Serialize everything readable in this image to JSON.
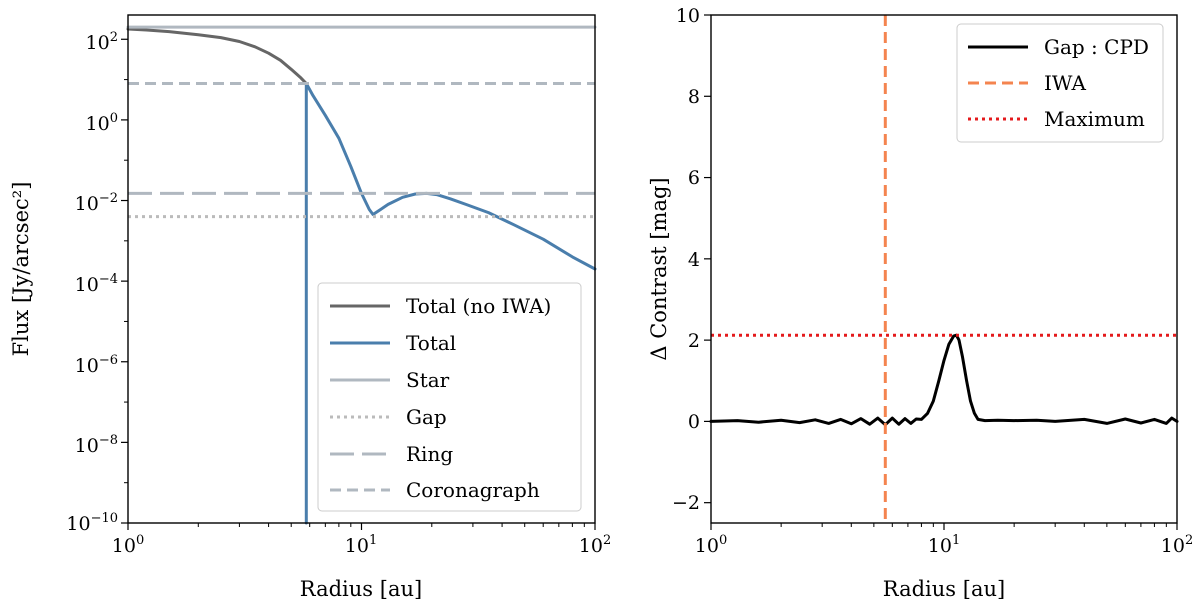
{
  "chart_data": [
    {
      "type": "line",
      "title": "",
      "xlabel": "Radius [au]",
      "ylabel": "Flux [Jy/arcsec²]",
      "xscale": "log",
      "yscale": "log",
      "xlim": [
        1,
        100
      ],
      "ylim": [
        1e-10,
        400
      ],
      "x_ticks": [
        {
          "value": 1,
          "base": "10",
          "exp": "0"
        },
        {
          "value": 10,
          "base": "10",
          "exp": "1"
        },
        {
          "value": 100,
          "base": "10",
          "exp": "2"
        }
      ],
      "y_ticks": [
        {
          "value": 100,
          "base": "10",
          "exp": "2"
        },
        {
          "value": 1,
          "base": "10",
          "exp": "0"
        },
        {
          "value": 0.01,
          "base": "10",
          "exp": "−2"
        },
        {
          "value": 0.0001,
          "base": "10",
          "exp": "−4"
        },
        {
          "value": 1e-06,
          "base": "10",
          "exp": "−6"
        },
        {
          "value": 1e-08,
          "base": "10",
          "exp": "−8"
        },
        {
          "value": 1e-10,
          "base": "10",
          "exp": "−10"
        }
      ],
      "legend_position": "lower-right",
      "series": [
        {
          "name": "Total (no IWA)",
          "color": "#666666",
          "style": "solid",
          "x": [
            1,
            1.2,
            1.5,
            2,
            2.5,
            3,
            3.5,
            4,
            4.5,
            5,
            5.5,
            5.8
          ],
          "y": [
            180,
            170,
            155,
            130,
            110,
            88,
            65,
            45,
            30,
            18,
            11,
            8
          ]
        },
        {
          "name": "Total",
          "color": "#4a7eac",
          "style": "solid",
          "x": [
            5.8,
            5.8,
            6.2,
            7,
            8,
            9,
            10,
            10.8,
            11.2,
            11.8,
            13,
            15,
            17,
            19,
            21,
            24,
            28,
            35,
            45,
            60,
            80,
            100
          ],
          "y": [
            1e-10,
            8,
            4,
            1.3,
            0.35,
            0.07,
            0.015,
            0.006,
            0.0045,
            0.0055,
            0.008,
            0.012,
            0.0145,
            0.015,
            0.014,
            0.011,
            0.008,
            0.005,
            0.0025,
            0.0011,
            0.0004,
            0.0002
          ]
        },
        {
          "name": "Star",
          "color": "#b0b8c0",
          "style": "solid",
          "x": [
            1,
            100
          ],
          "y": [
            200,
            200
          ]
        },
        {
          "name": "Gap",
          "color": "#bbbbbb",
          "style": "dotted",
          "x": [
            1,
            100
          ],
          "y": [
            0.004,
            0.004
          ]
        },
        {
          "name": "Ring",
          "color": "#b0b8c0",
          "style": "longdash",
          "x": [
            1,
            100
          ],
          "y": [
            0.015,
            0.015
          ]
        },
        {
          "name": "Coronagraph",
          "color": "#b0b8c0",
          "style": "dashed",
          "x": [
            1,
            100
          ],
          "y": [
            8,
            8
          ]
        }
      ]
    },
    {
      "type": "line",
      "title": "",
      "xlabel": "Radius [au]",
      "ylabel": "Δ Contrast [mag]",
      "xscale": "log",
      "yscale": "linear",
      "xlim": [
        1,
        100
      ],
      "ylim": [
        -2.5,
        10
      ],
      "x_ticks": [
        {
          "value": 1,
          "base": "10",
          "exp": "0"
        },
        {
          "value": 10,
          "base": "10",
          "exp": "1"
        },
        {
          "value": 100,
          "base": "10",
          "exp": "2"
        }
      ],
      "y_ticks": [
        {
          "value": 10,
          "label": "10"
        },
        {
          "value": 8,
          "label": "8"
        },
        {
          "value": 6,
          "label": "6"
        },
        {
          "value": 4,
          "label": "4"
        },
        {
          "value": 2,
          "label": "2"
        },
        {
          "value": 0,
          "label": "0"
        },
        {
          "value": -2,
          "label": "−2"
        }
      ],
      "legend_position": "top-right",
      "series": [
        {
          "name": "Gap : CPD",
          "color": "#000000",
          "style": "solid",
          "x": [
            1,
            1.3,
            1.6,
            2,
            2.4,
            2.8,
            3.2,
            3.6,
            4,
            4.4,
            4.8,
            5.2,
            5.6,
            6,
            6.4,
            6.8,
            7.2,
            7.6,
            8,
            8.5,
            9,
            9.5,
            10,
            10.5,
            11,
            11.3,
            11.6,
            12,
            12.5,
            13,
            13.5,
            14,
            15,
            17,
            20,
            25,
            30,
            40,
            50,
            60,
            70,
            80,
            90,
            95,
            100
          ],
          "y": [
            0,
            0.02,
            -0.02,
            0.03,
            -0.03,
            0.04,
            -0.05,
            0.05,
            -0.06,
            0.07,
            -0.07,
            0.08,
            -0.08,
            0.08,
            -0.07,
            0.07,
            -0.05,
            0.06,
            0.05,
            0.2,
            0.5,
            1.0,
            1.5,
            1.9,
            2.1,
            2.12,
            2.0,
            1.6,
            1.0,
            0.5,
            0.2,
            0.05,
            0.02,
            0.03,
            0.02,
            0.03,
            0.0,
            0.05,
            -0.05,
            0.06,
            -0.04,
            0.05,
            -0.05,
            0.08,
            0.0
          ]
        },
        {
          "name": "IWA",
          "color": "#f4844f",
          "style": "dashed",
          "vertical_x": 5.6
        },
        {
          "name": "Maximum",
          "color": "#e41a1c",
          "style": "dotted",
          "horizontal_y": 2.12
        }
      ]
    }
  ]
}
